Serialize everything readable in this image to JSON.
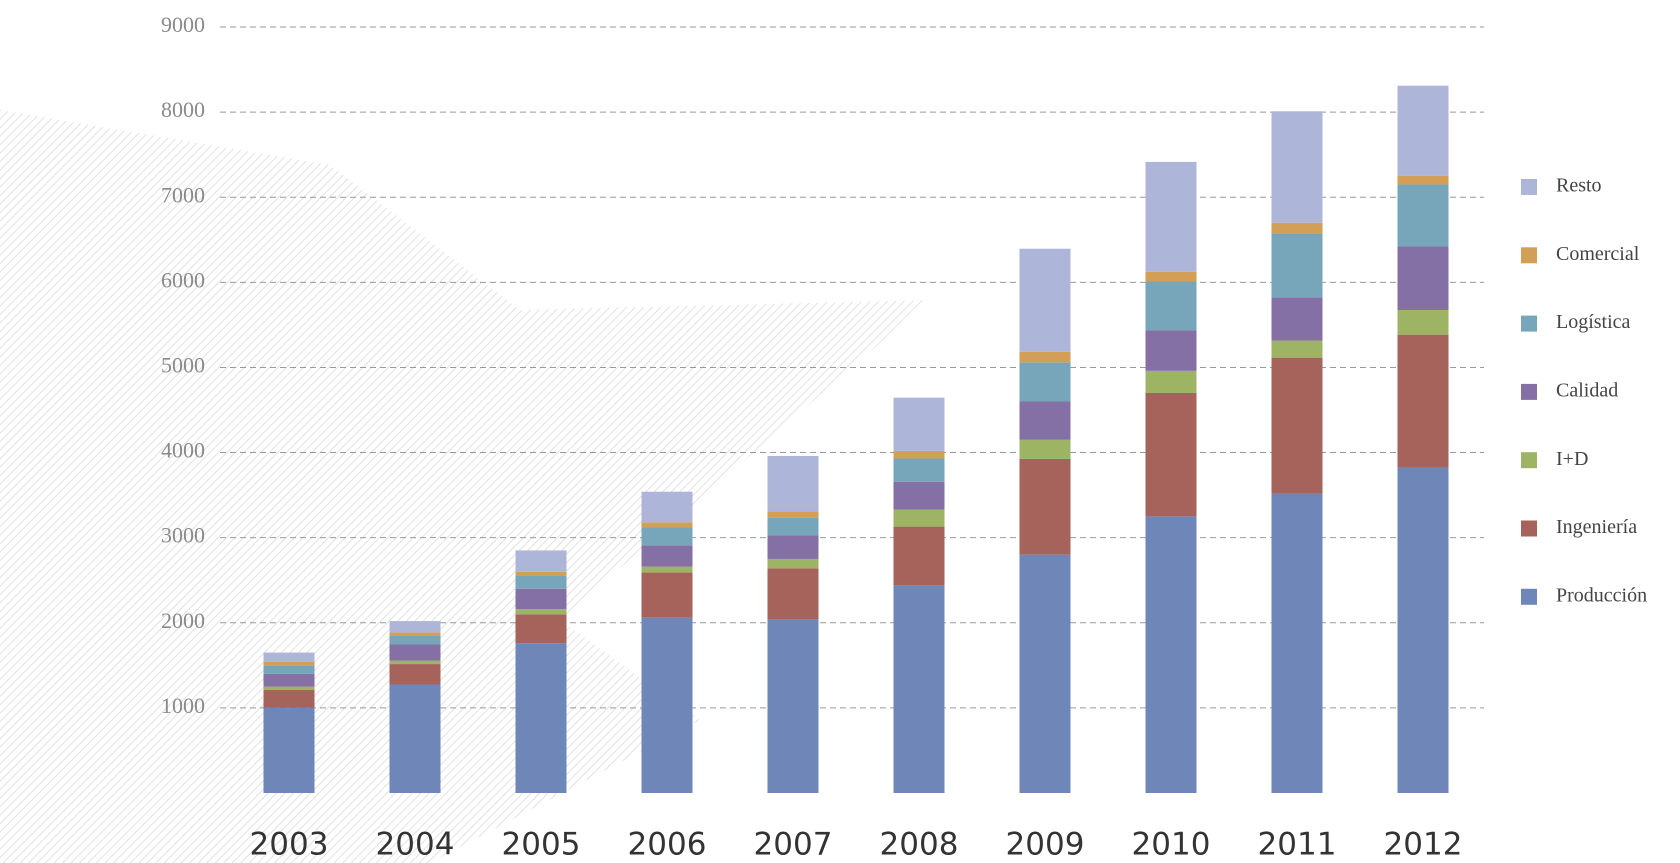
{
  "chart_data": {
    "type": "stacked-bar",
    "categories": [
      "2003",
      "2004",
      "2005",
      "2006",
      "2007",
      "2008",
      "2009",
      "2010",
      "2011",
      "2012"
    ],
    "series": [
      {
        "name": "Producción",
        "color": "#6f86b9",
        "values": [
          1000,
          1275,
          1760,
          2060,
          2040,
          2440,
          2800,
          3250,
          3525,
          3825
        ]
      },
      {
        "name": "Ingeniería",
        "color": "#a5635b",
        "values": [
          210,
          240,
          340,
          530,
          600,
          690,
          1125,
          1450,
          1590,
          1560
        ]
      },
      {
        "name": "I+D",
        "color": "#9cb463",
        "values": [
          40,
          40,
          60,
          70,
          110,
          200,
          225,
          260,
          200,
          290
        ]
      },
      {
        "name": "Calidad",
        "color": "#8470a5",
        "values": [
          150,
          190,
          240,
          250,
          275,
          325,
          450,
          475,
          510,
          750
        ]
      },
      {
        "name": "Logística",
        "color": "#77a6ba",
        "values": [
          100,
          100,
          150,
          210,
          210,
          275,
          460,
          575,
          750,
          725
        ]
      },
      {
        "name": "Comercial",
        "color": "#d39e55",
        "values": [
          40,
          40,
          50,
          60,
          75,
          90,
          125,
          115,
          125,
          100
        ]
      },
      {
        "name": "Resto",
        "color": "#adb6d8",
        "values": [
          110,
          135,
          250,
          360,
          650,
          625,
          1210,
          1290,
          1310,
          1060
        ]
      }
    ],
    "ylim": [
      0,
      9000
    ],
    "yticks": [
      1000,
      2000,
      3000,
      4000,
      5000,
      6000,
      7000,
      8000,
      9000
    ],
    "grid": true,
    "legend": "right"
  }
}
